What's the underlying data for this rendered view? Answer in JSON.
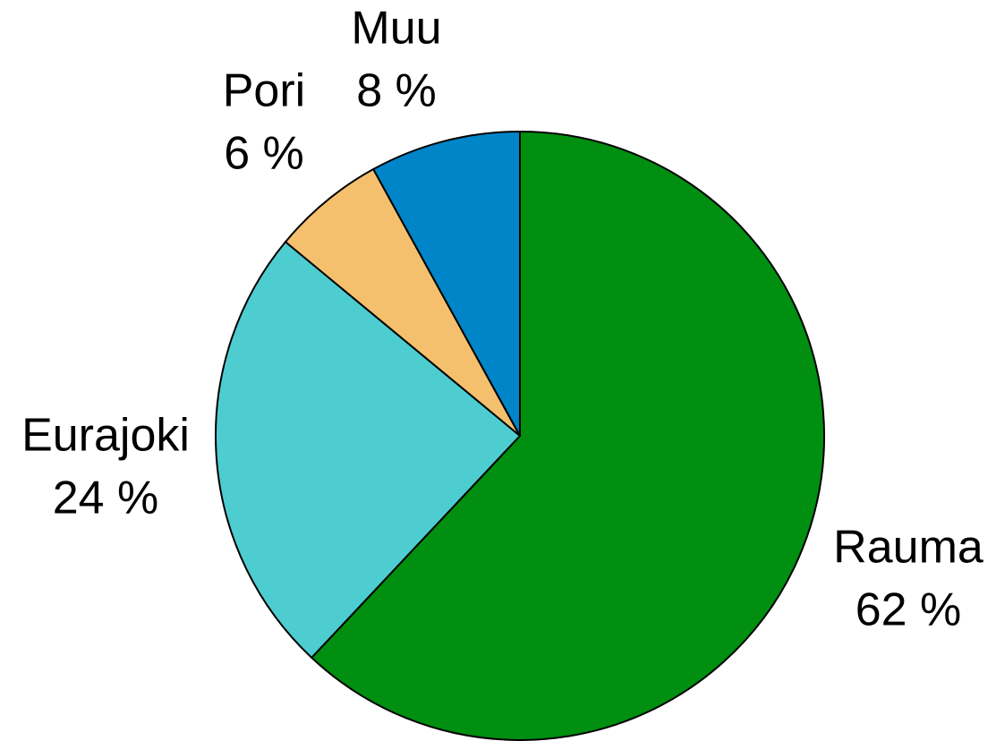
{
  "chart_data": {
    "type": "pie",
    "categories": [
      "Rauma",
      "Eurajoki",
      "Pori",
      "Muu"
    ],
    "values": [
      62,
      24,
      6,
      8
    ],
    "value_labels": [
      "62 %",
      "24 %",
      "6 %",
      "8 %"
    ],
    "colors": [
      "#008f11",
      "#4ecdd1",
      "#f5c06e",
      "#0085c8"
    ]
  }
}
